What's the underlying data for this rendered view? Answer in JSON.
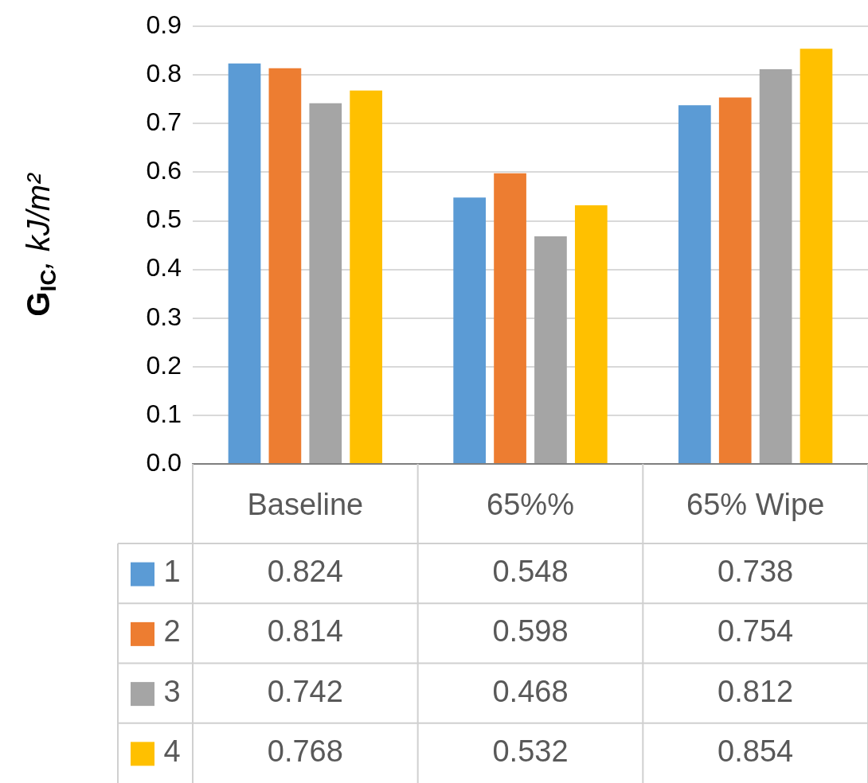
{
  "chart_data": {
    "type": "bar",
    "ylabel": "G$_{IC}$, kJ/m²",
    "categories": [
      "Baseline",
      "65%%",
      "65% Wipe"
    ],
    "series": [
      {
        "name": "1",
        "color": "#5b9bd5",
        "values": [
          0.824,
          0.548,
          0.738
        ]
      },
      {
        "name": "2",
        "color": "#ed7d31",
        "values": [
          0.814,
          0.598,
          0.754
        ]
      },
      {
        "name": "3",
        "color": "#a5a5a5",
        "values": [
          0.742,
          0.468,
          0.812
        ]
      },
      {
        "name": "4",
        "color": "#ffc000",
        "values": [
          0.768,
          0.532,
          0.854
        ]
      }
    ],
    "ylim": [
      0,
      0.9
    ],
    "yticks": [
      {
        "value": 0,
        "label": "0.0"
      },
      0.1,
      0.2,
      0.3,
      0.4,
      0.5,
      0.6,
      0.7,
      0.8,
      0.9
    ],
    "grid": "y",
    "legend": "bottom",
    "data_labels": true
  }
}
